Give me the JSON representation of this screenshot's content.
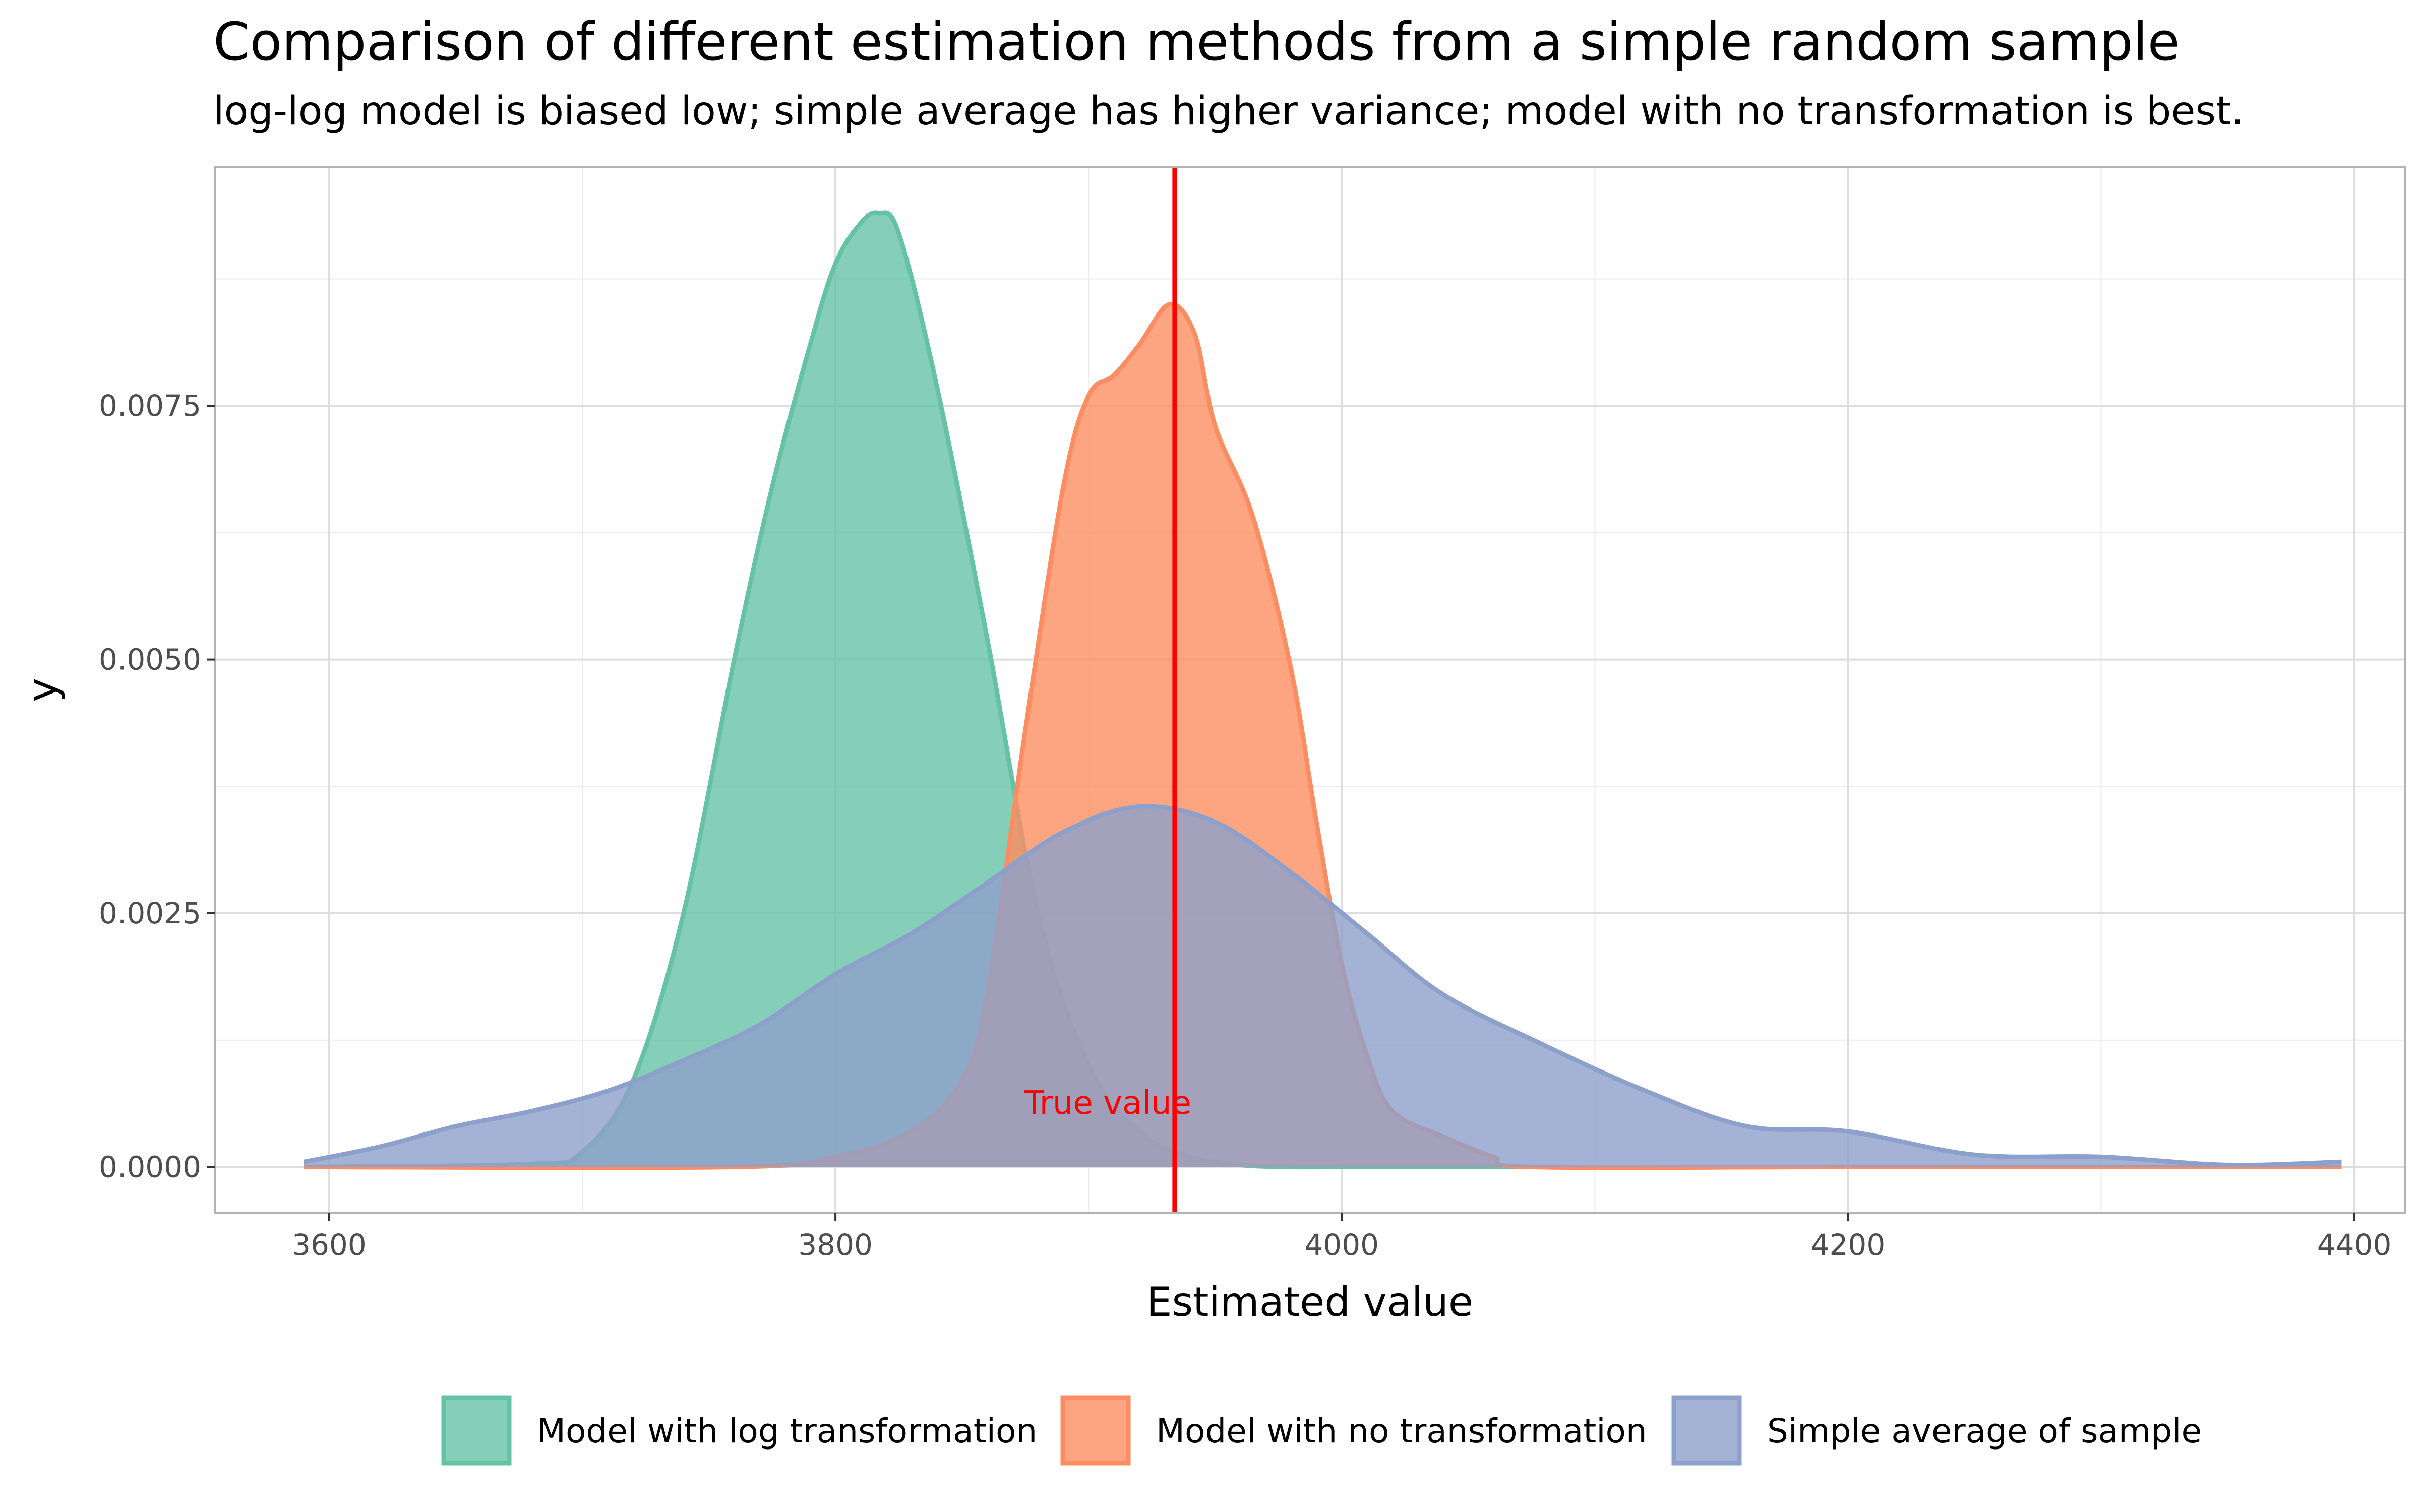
{
  "chart_data": {
    "type": "area",
    "title": "Comparison of different estimation methods from a simple random sample",
    "subtitle": "log-log model is biased low; simple average has higher variance; model with no transformation is best.",
    "xlabel": "Estimated value",
    "ylabel": "y",
    "xlim": [
      3555,
      4420
    ],
    "ylim": [
      -0.00045,
      0.00985
    ],
    "x_ticks": [
      3600,
      3800,
      4000,
      4200,
      4400
    ],
    "x_tick_labels": [
      "3600",
      "3800",
      "4000",
      "4200",
      "4400"
    ],
    "y_ticks": [
      0.0,
      0.0025,
      0.005,
      0.0075
    ],
    "y_tick_labels": [
      "0.0000",
      "0.0025",
      "0.0050",
      "0.0075"
    ],
    "grid": true,
    "legend_position": "bottom",
    "reference_line": {
      "x": 3934,
      "label": "True value",
      "color": "#ff0000"
    },
    "series": [
      {
        "name": "Model with log transformation",
        "color": "#66c2a5",
        "x": [
          3590,
          3680,
          3700,
          3720,
          3740,
          3760,
          3775,
          3790,
          3800,
          3810,
          3817,
          3825,
          3840,
          3860,
          3880,
          3900,
          3920,
          3940,
          3960,
          3980,
          4000,
          4040,
          4085
        ],
        "y": [
          0.0,
          3e-05,
          0.00015,
          0.00085,
          0.0025,
          0.005,
          0.0067,
          0.0081,
          0.0089,
          0.0093,
          0.0094,
          0.0092,
          0.0077,
          0.0052,
          0.0025,
          0.001,
          0.00035,
          0.0001,
          2e-05,
          0.0,
          0.0,
          0.0,
          0.0
        ]
      },
      {
        "name": "Model with no transformation",
        "color": "#fc8d62",
        "x": [
          3590,
          3760,
          3800,
          3830,
          3850,
          3860,
          3875,
          3890,
          3900,
          3910,
          3920,
          3932,
          3942,
          3950,
          3965,
          3980,
          3990,
          4000,
          4010,
          4020,
          4040,
          4060,
          4075,
          4200,
          4395
        ],
        "y": [
          0.0,
          0.0,
          0.0001,
          0.00035,
          0.00085,
          0.0017,
          0.0043,
          0.0067,
          0.0076,
          0.0078,
          0.0081,
          0.0085,
          0.0082,
          0.0073,
          0.0064,
          0.0049,
          0.0034,
          0.002,
          0.0011,
          0.00055,
          0.0003,
          0.0001,
          0.0,
          0.0,
          0.0
        ]
      },
      {
        "name": "Simple average of sample",
        "color": "#8da0cb",
        "x": [
          3590,
          3620,
          3650,
          3680,
          3710,
          3740,
          3770,
          3800,
          3830,
          3860,
          3890,
          3920,
          3950,
          3980,
          4010,
          4040,
          4080,
          4120,
          4160,
          4200,
          4250,
          4300,
          4350,
          4395
        ],
        "y": [
          5e-05,
          0.0002,
          0.0004,
          0.00055,
          0.00075,
          0.00105,
          0.0014,
          0.0019,
          0.0023,
          0.0028,
          0.0033,
          0.00355,
          0.0034,
          0.0029,
          0.0023,
          0.0017,
          0.0012,
          0.00075,
          0.0004,
          0.00035,
          0.00012,
          0.0001,
          2e-05,
          5e-05
        ]
      }
    ]
  }
}
